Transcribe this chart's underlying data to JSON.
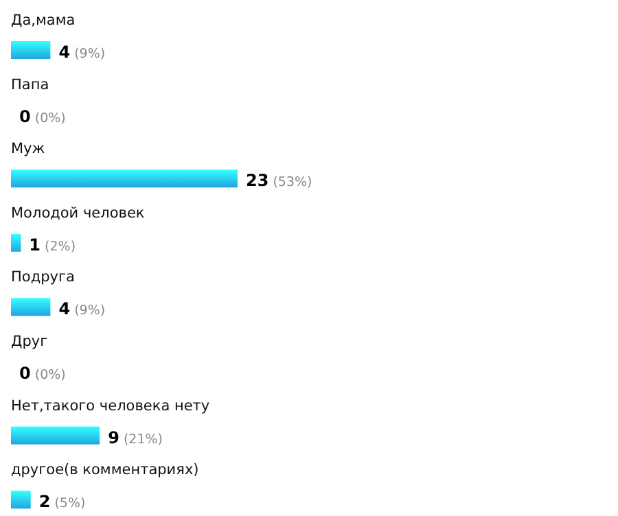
{
  "chart_data": {
    "type": "bar",
    "orientation": "horizontal",
    "categories": [
      "Да,мама",
      "Папа",
      "Муж",
      "Молодой человек",
      "Подруга",
      "Друг",
      "Нет,такого человека нету",
      "другое(в комментариях)"
    ],
    "values": [
      4,
      0,
      23,
      1,
      4,
      0,
      9,
      2
    ],
    "value_labels": [
      "4 (9%)",
      "0 (0%)",
      "23 (53%)",
      "1 (2%)",
      "4 (9%)",
      "0 (0%)",
      "9 (21%)",
      "2 (5%)"
    ],
    "color": "#1ea6e0"
  }
}
